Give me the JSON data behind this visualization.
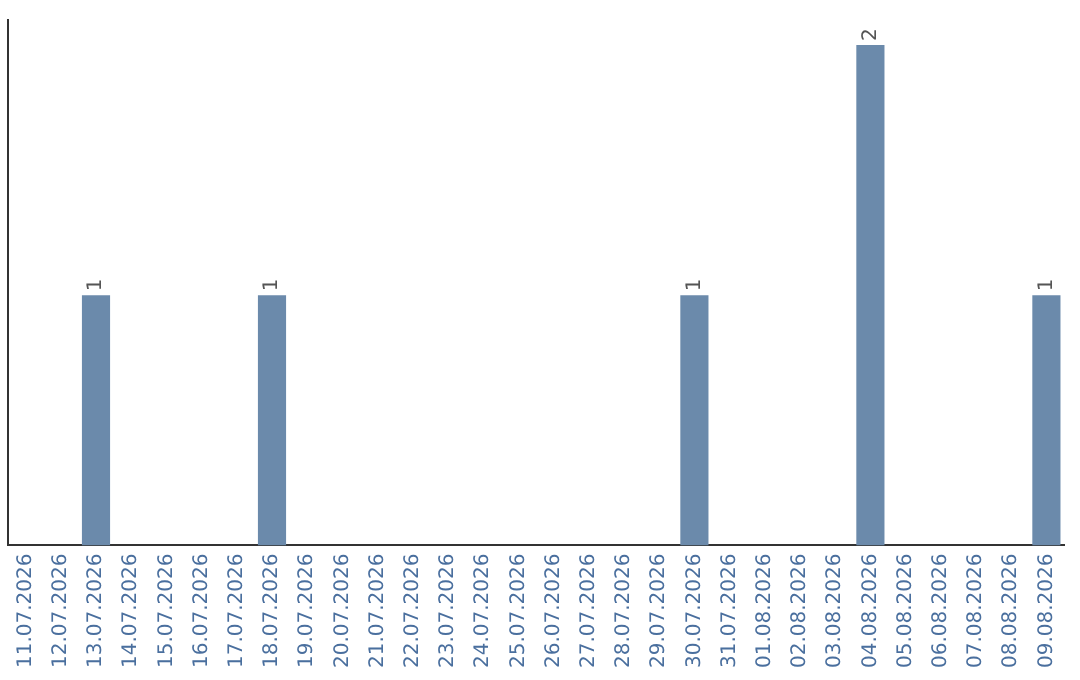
{
  "chart_data": {
    "type": "bar",
    "categories": [
      "11.07.2026",
      "12.07.2026",
      "13.07.2026",
      "14.07.2026",
      "15.07.2026",
      "16.07.2026",
      "17.07.2026",
      "18.07.2026",
      "19.07.2026",
      "20.07.2026",
      "21.07.2026",
      "22.07.2026",
      "23.07.2026",
      "24.07.2026",
      "25.07.2026",
      "26.07.2026",
      "27.07.2026",
      "28.07.2026",
      "29.07.2026",
      "30.07.2026",
      "31.07.2026",
      "01.08.2026",
      "02.08.2026",
      "03.08.2026",
      "04.08.2026",
      "05.08.2026",
      "06.08.2026",
      "07.08.2026",
      "08.08.2026",
      "09.08.2026"
    ],
    "values": [
      0,
      0,
      1,
      0,
      0,
      0,
      0,
      1,
      0,
      0,
      0,
      0,
      0,
      0,
      0,
      0,
      0,
      0,
      0,
      1,
      0,
      0,
      0,
      0,
      2,
      0,
      0,
      0,
      0,
      1
    ],
    "value_labels": [
      null,
      null,
      "1",
      null,
      null,
      null,
      null,
      "1",
      null,
      null,
      null,
      null,
      null,
      null,
      null,
      null,
      null,
      null,
      null,
      "1",
      null,
      null,
      null,
      null,
      "2",
      null,
      null,
      null,
      null,
      "1"
    ],
    "color": "#6b8aab",
    "ylim": [
      0,
      2.1
    ],
    "tick_labels": "x",
    "grid": false,
    "legend": false
  }
}
